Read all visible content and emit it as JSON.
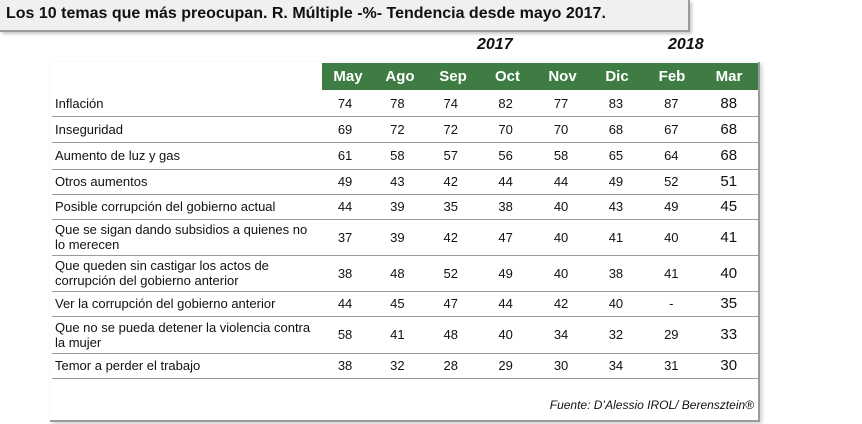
{
  "title": "Los 10 temas que más preocupan. R. Múltiple -%-  Tendencia desde mayo 2017.",
  "source": "Fuente: D’Alessio IROL/ Berensztein®",
  "chart_data": {
    "type": "table",
    "year_labels": [
      {
        "label": "2017",
        "over_months": [
          "May",
          "Ago",
          "Sep",
          "Oct",
          "Nov",
          "Dic"
        ]
      },
      {
        "label": "2018",
        "over_months": [
          "Feb",
          "Mar"
        ]
      }
    ],
    "columns": [
      "May",
      "Ago",
      "Sep",
      "Oct",
      "Nov",
      "Dic",
      "Feb",
      "Mar"
    ],
    "rows": [
      {
        "label": "Inflación",
        "values": [
          "74",
          "78",
          "74",
          "82",
          "77",
          "83",
          "87",
          "88"
        ]
      },
      {
        "label": "Inseguridad",
        "values": [
          "69",
          "72",
          "72",
          "70",
          "70",
          "68",
          "67",
          "68"
        ]
      },
      {
        "label": "Aumento de luz y gas",
        "values": [
          "61",
          "58",
          "57",
          "56",
          "58",
          "65",
          "64",
          "68"
        ]
      },
      {
        "label": "Otros aumentos",
        "values": [
          "49",
          "43",
          "42",
          "44",
          "44",
          "49",
          "52",
          "51"
        ]
      },
      {
        "label": "Posible corrupción del gobierno actual",
        "values": [
          "44",
          "39",
          "35",
          "38",
          "40",
          "43",
          "49",
          "45"
        ]
      },
      {
        "label": "Que se sigan dando subsidios a quienes no lo merecen",
        "values": [
          "37",
          "39",
          "42",
          "47",
          "40",
          "41",
          "40",
          "41"
        ]
      },
      {
        "label": "Que queden sin castigar los actos de corrupción del gobierno anterior",
        "values": [
          "38",
          "48",
          "52",
          "49",
          "40",
          "38",
          "41",
          "40"
        ]
      },
      {
        "label": "Ver la corrupción del gobierno anterior",
        "values": [
          "44",
          "45",
          "47",
          "44",
          "42",
          "40",
          "-",
          "35"
        ]
      },
      {
        "label": "Que no se pueda detener la violencia contra la mujer",
        "values": [
          "58",
          "41",
          "48",
          "40",
          "34",
          "32",
          "29",
          "33"
        ]
      },
      {
        "label": "Temor a perder el trabajo",
        "values": [
          "38",
          "32",
          "28",
          "29",
          "30",
          "34",
          "31",
          "30"
        ]
      }
    ]
  }
}
